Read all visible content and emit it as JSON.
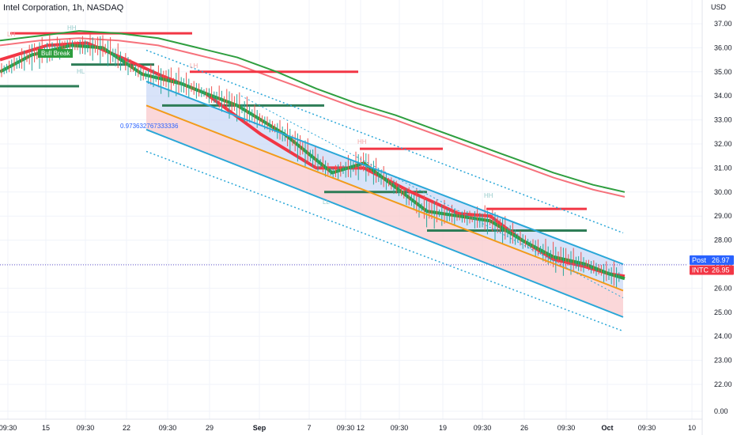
{
  "header": {
    "title": "Intel Corporation, 1h, NASDAQ"
  },
  "colors": {
    "accent_blue": "#2962ff",
    "up": "#26a69a",
    "down": "#ef5350",
    "ma_green": "#2e9e3f",
    "ma_red": "#f23645",
    "channel": "#2aa7d8",
    "mid_line": "#f29b1b"
  },
  "chart_data": {
    "type": "line",
    "title": "Intel Corporation, 1h, NASDAQ",
    "ylabel": "USD",
    "ylim": [
      0,
      37.6
    ],
    "y_ticks": [
      "37.00",
      "36.00",
      "35.00",
      "34.00",
      "33.00",
      "32.00",
      "31.00",
      "30.00",
      "29.00",
      "28.00",
      "27.00",
      "26.00",
      "25.00",
      "24.00",
      "23.00",
      "22.00",
      "0.00"
    ],
    "x_ticks": [
      "09:30",
      "15",
      "09:30",
      "22",
      "09:30",
      "29",
      "Sep",
      "7",
      "09:30",
      "12",
      "09:30",
      "19",
      "09:30",
      "26",
      "09:30",
      "Oct",
      "09:30",
      "10"
    ],
    "grid": true,
    "price_tags": [
      {
        "label": "Post",
        "value": "26.97",
        "color": "#2962ff"
      },
      {
        "label": "INTC",
        "value": "26.95",
        "color": "#f23645"
      }
    ],
    "annotations": [
      "LH",
      "HH",
      "HL",
      "LH",
      "0.973632767333336",
      "LL",
      "HH",
      "HH",
      "Bull Break"
    ],
    "series": [
      {
        "name": "",
        "color": "#2e9e3f",
        "x": [
          0,
          50,
          100,
          150,
          200,
          250,
          300,
          350,
          400,
          450,
          500,
          550,
          600,
          650,
          700,
          750,
          790
        ],
        "y": [
          36.3,
          36.5,
          36.7,
          36.6,
          36.4,
          36.0,
          35.6,
          35.0,
          34.3,
          33.7,
          33.2,
          32.6,
          32.0,
          31.4,
          30.8,
          30.3,
          30.0
        ]
      },
      {
        "name": "",
        "color": "#f23645",
        "x": [
          0,
          50,
          100,
          150,
          200,
          250,
          300,
          350,
          400,
          450,
          500,
          550,
          600,
          650,
          700,
          750,
          790
        ],
        "y": [
          36.1,
          36.3,
          36.4,
          36.3,
          36.1,
          35.7,
          35.3,
          34.7,
          34.1,
          33.5,
          33.0,
          32.4,
          31.8,
          31.2,
          30.6,
          30.1,
          29.8
        ]
      },
      {
        "name": "",
        "color": "#f23645",
        "x": [
          0,
          60,
          110,
          160,
          200,
          260,
          330,
          400,
          460,
          520,
          580,
          620,
          660,
          700,
          740,
          770,
          790
        ],
        "y": [
          35.5,
          36.1,
          36.2,
          35.5,
          34.9,
          34.1,
          32.4,
          31.0,
          31.0,
          30.0,
          29.1,
          29.0,
          28.0,
          27.2,
          26.9,
          26.6,
          26.5
        ]
      },
      {
        "name": "",
        "color": "#2e9e3f",
        "x": [
          0,
          40,
          90,
          130,
          180,
          230,
          260,
          300,
          360,
          420,
          460,
          500,
          540,
          580,
          620,
          660,
          700,
          740,
          770,
          790
        ],
        "y": [
          35.0,
          35.7,
          36.1,
          36.0,
          34.9,
          34.5,
          34.1,
          33.6,
          32.4,
          30.8,
          31.2,
          30.2,
          29.2,
          29.0,
          28.8,
          28.0,
          27.3,
          27.0,
          26.6,
          26.4
        ]
      }
    ],
    "channel": {
      "upper_start": [
        185,
        34.6
      ],
      "upper_end": [
        788,
        27.0
      ],
      "lower_start": [
        185,
        32.6
      ],
      "lower_end": [
        788,
        24.8
      ],
      "mid_start": [
        185,
        33.6
      ],
      "mid_end": [
        788,
        25.9
      ]
    },
    "levels": [
      {
        "x0": 13,
        "x1": 243,
        "y": 36.6,
        "color": "#f23645"
      },
      {
        "x0": 0,
        "x1": 100,
        "y": 34.4,
        "color": "#2e7d57"
      },
      {
        "x0": 90,
        "x1": 195,
        "y": 35.3,
        "color": "#2e7d57"
      },
      {
        "x0": 240,
        "x1": 453,
        "y": 35.0,
        "color": "#f23645"
      },
      {
        "x0": 205,
        "x1": 410,
        "y": 33.6,
        "color": "#2e7d57"
      },
      {
        "x0": 455,
        "x1": 560,
        "y": 31.8,
        "color": "#f23645"
      },
      {
        "x0": 410,
        "x1": 540,
        "y": 30.0,
        "color": "#2e7d57"
      },
      {
        "x0": 615,
        "x1": 742,
        "y": 29.3,
        "color": "#f23645"
      },
      {
        "x0": 540,
        "x1": 742,
        "y": 28.4,
        "color": "#2e7d57"
      }
    ]
  }
}
